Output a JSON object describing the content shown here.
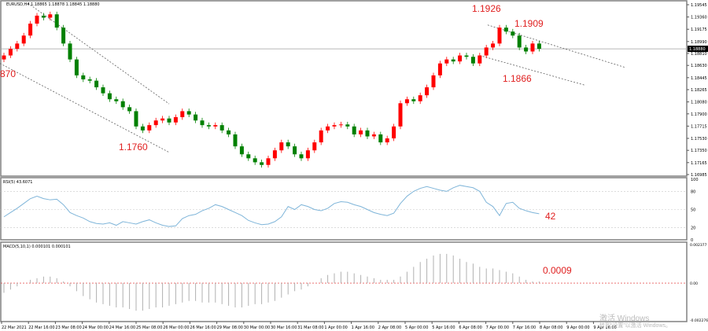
{
  "header": {
    "symbol_line": "EURUSD,H4 1.18865 1.18878 1.18845 1.18880",
    "rsi_label": "RSI(5) 43.6071",
    "macd_label": "MACD(5,10,1) 0.000101 0.000101"
  },
  "annotations": {
    "a1": "1.1926",
    "a2": "1.1909",
    "a3": "1.1866",
    "a4": "1.1760",
    "a5": "870",
    "rsi_value": "42",
    "macd_value": "0.0009"
  },
  "watermark": {
    "line1": "激活 Windows",
    "line2": "转到“设置”以激活 Windows。"
  },
  "colors": {
    "up": "#ff0000",
    "down": "#008000",
    "rsi": "#7fb5d9",
    "macd": "#b0b0b0",
    "signal": "#e02020"
  },
  "chart_data": [
    {
      "type": "candlestick",
      "symbol": "EURUSD",
      "timeframe": "H4",
      "current_price": "1.18880",
      "y_ticks": [
        "1.19545",
        "1.19360",
        "1.19175",
        "1.18990",
        "1.18810",
        "1.18630",
        "1.18445",
        "1.18265",
        "1.18080",
        "1.17900",
        "1.17715",
        "1.17530",
        "1.17350",
        "1.17165",
        "1.16985"
      ],
      "ylim": [
        1.16985,
        1.19545
      ],
      "open_first": 1.1872,
      "close": [
        1.1878,
        1.1888,
        1.1896,
        1.1908,
        1.1926,
        1.1938,
        1.1935,
        1.194,
        1.192,
        1.1896,
        1.1872,
        1.1848,
        1.1842,
        1.184,
        1.183,
        1.1821,
        1.1812,
        1.1809,
        1.18,
        1.1794,
        1.1771,
        1.1765,
        1.1773,
        1.178,
        1.1783,
        1.1777,
        1.1785,
        1.1794,
        1.1789,
        1.178,
        1.1773,
        1.1771,
        1.1773,
        1.1765,
        1.1759,
        1.1741,
        1.1729,
        1.1723,
        1.1717,
        1.1713,
        1.1723,
        1.1735,
        1.1747,
        1.1741,
        1.1729,
        1.1723,
        1.1735,
        1.1747,
        1.1765,
        1.1771,
        1.1773,
        1.1774,
        1.1771,
        1.1759,
        1.1765,
        1.1756,
        1.1759,
        1.1747,
        1.1753,
        1.1771,
        1.1806,
        1.1812,
        1.1809,
        1.1818,
        1.183,
        1.1848,
        1.1866,
        1.1872,
        1.1869,
        1.1878,
        1.1876,
        1.1866,
        1.1878,
        1.189,
        1.1896,
        1.192,
        1.1914,
        1.1908,
        1.189,
        1.1884,
        1.1896,
        1.1888
      ],
      "x_labels": [
        "22 Mar 2021",
        "22 Mar 16:00",
        "23 Mar 08:00",
        "24 Mar 00:00",
        "24 Mar 16:00",
        "25 Mar 08:00",
        "26 Mar 00:00",
        "26 Mar 16:00",
        "29 Mar 08:00",
        "30 Mar 00:00",
        "30 Mar 16:00",
        "31 Mar 08:00",
        "1 Apr 00:00",
        "1 Apr 16:00",
        "2 Apr 08:00",
        "5 Apr 00:00",
        "5 Apr 16:00",
        "6 Apr 08:00",
        "7 Apr 00:00",
        "7 Apr 16:00",
        "8 Apr 08:00",
        "9 Apr 00:00",
        "9 Apr 16:00"
      ],
      "trendlines": [
        {
          "from": [
            3.6,
            1.1957
          ],
          "to": [
            25,
            1.1805
          ]
        },
        {
          "from": [
            -0.6,
            1.1866
          ],
          "to": [
            25,
            1.1732
          ]
        },
        {
          "from": [
            73.2,
            1.1924
          ],
          "to": [
            94,
            1.186
          ]
        },
        {
          "from": [
            72,
            1.1878
          ],
          "to": [
            88,
            1.1833
          ]
        }
      ]
    },
    {
      "type": "line",
      "name": "RSI(5)",
      "ylim": [
        0,
        100
      ],
      "levels": [
        80,
        50,
        20
      ],
      "y_ticks": [
        "100",
        "80",
        "50",
        "20",
        "0"
      ],
      "values": [
        38,
        45,
        52,
        60,
        68,
        72,
        68,
        66,
        67,
        58,
        45,
        40,
        36,
        30,
        27,
        26,
        28,
        24,
        30,
        28,
        26,
        30,
        33,
        28,
        24,
        22,
        23,
        35,
        40,
        42,
        48,
        52,
        58,
        55,
        50,
        45,
        40,
        32,
        28,
        25,
        26,
        30,
        38,
        55,
        50,
        58,
        55,
        50,
        48,
        52,
        60,
        63,
        62,
        58,
        55,
        50,
        45,
        42,
        40,
        44,
        60,
        72,
        80,
        85,
        88,
        85,
        82,
        80,
        86,
        90,
        88,
        86,
        80,
        62,
        55,
        40,
        60,
        62,
        52,
        48,
        45,
        43
      ]
    },
    {
      "type": "bar",
      "name": "MACD(5,10,1)",
      "ylim": [
        -0.002276,
        0.002377
      ],
      "y_ticks": [
        "0.002377",
        "0.00",
        "-0.002276"
      ],
      "values": [
        -0.0006,
        -0.0004,
        -0.0002,
        0,
        0.0002,
        0.0003,
        0.0004,
        0.0004,
        0.0003,
        0.0001,
        -0.0002,
        -0.0005,
        -0.0008,
        -0.001,
        -0.0012,
        -0.0013,
        -0.0014,
        -0.0015,
        -0.0015,
        -0.0016,
        -0.0017,
        -0.0017,
        -0.0016,
        -0.0015,
        -0.0015,
        -0.0014,
        -0.0013,
        -0.0012,
        -0.0011,
        -0.0011,
        -0.0012,
        -0.0012,
        -0.0012,
        -0.0013,
        -0.0014,
        -0.0015,
        -0.0015,
        -0.0014,
        -0.0013,
        -0.0013,
        -0.0012,
        -0.0011,
        -0.0009,
        -0.0007,
        -0.0005,
        -0.0004,
        -0.0002,
        0,
        0.0003,
        0.0005,
        0.0006,
        0.0007,
        0.0007,
        0.0006,
        0.0005,
        0.0004,
        0.0003,
        0.0002,
        0.0002,
        0.0002,
        0.0004,
        0.0007,
        0.001,
        0.0013,
        0.0015,
        0.0017,
        0.0018,
        0.0018,
        0.0017,
        0.0015,
        0.0013,
        0.0012,
        0.001,
        0.0009,
        0.0009,
        0.0008,
        0.0007,
        0.0006,
        0.0004,
        0.0002,
        0.0001,
        0.0001
      ]
    }
  ]
}
